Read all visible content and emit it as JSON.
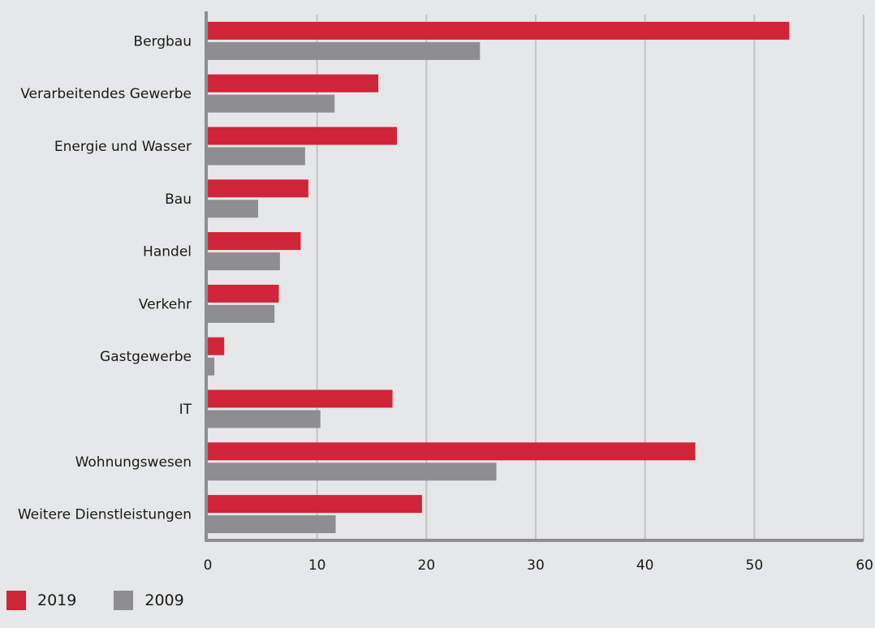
{
  "chart_data": {
    "type": "bar",
    "orientation": "horizontal",
    "categories": [
      "Bergbau",
      "Verarbeitendes Gewerbe",
      "Energie und Wasser",
      "Bau",
      "Handel",
      "Verkehr",
      "Gastgewerbe",
      "IT",
      "Wohnungswesen",
      "Weitere Dienstleistungen"
    ],
    "series": [
      {
        "name": "2019",
        "color": "#d0243a",
        "values": [
          53.2,
          15.6,
          17.3,
          9.2,
          8.5,
          6.5,
          1.5,
          16.9,
          44.6,
          19.6
        ]
      },
      {
        "name": "2009",
        "color": "#8e8e90",
        "values": [
          24.9,
          11.6,
          8.9,
          4.6,
          6.6,
          6.1,
          0.6,
          10.3,
          26.4,
          11.7
        ]
      }
    ],
    "xlim": [
      0,
      60
    ],
    "xticks": [
      0,
      10,
      20,
      30,
      40,
      50,
      60
    ],
    "grid": true,
    "legend": "bottom-left",
    "title": "",
    "xlabel": "",
    "ylabel": ""
  }
}
